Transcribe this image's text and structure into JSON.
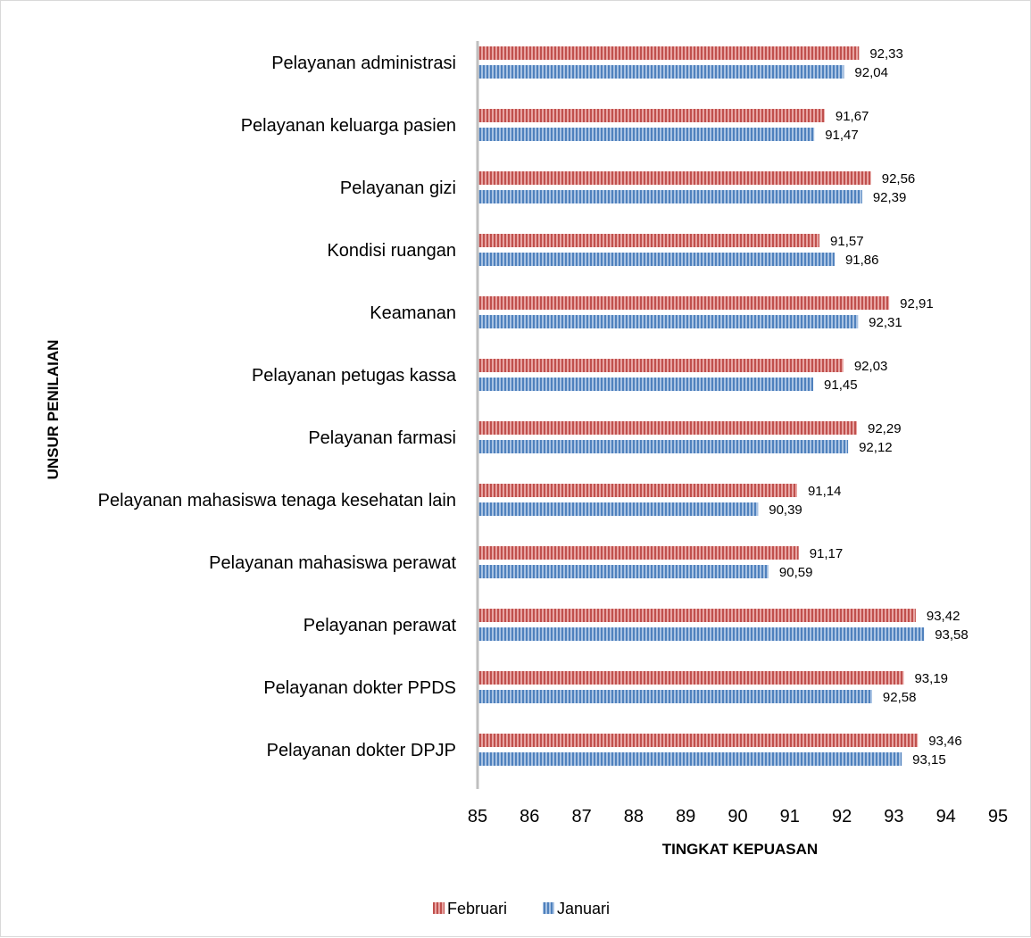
{
  "chart_data": {
    "type": "bar",
    "orientation": "horizontal",
    "categories": [
      "Pelayanan administrasi",
      "Pelayanan keluarga pasien",
      "Pelayanan gizi",
      "Kondisi ruangan",
      "Keamanan",
      "Pelayanan petugas kassa",
      "Pelayanan farmasi",
      "Pelayanan mahasiswa tenaga kesehatan lain",
      "Pelayanan mahasiswa perawat",
      "Pelayanan perawat",
      "Pelayanan dokter PPDS",
      "Pelayanan dokter DPJP"
    ],
    "series": [
      {
        "name": "Februari",
        "color": "#c0504d",
        "values": [
          92.33,
          91.67,
          92.56,
          91.57,
          92.91,
          92.03,
          92.29,
          91.14,
          91.17,
          93.42,
          93.19,
          93.46
        ],
        "labels": [
          "92,33",
          "91,67",
          "92,56",
          "91,57",
          "92,91",
          "92,03",
          "92,29",
          "91,14",
          "91,17",
          "93,42",
          "93,19",
          "93,46"
        ]
      },
      {
        "name": "Januari",
        "color": "#4f81bd",
        "values": [
          92.04,
          91.47,
          92.39,
          91.86,
          92.31,
          91.45,
          92.12,
          90.39,
          90.59,
          93.58,
          92.58,
          93.15
        ],
        "labels": [
          "92,04",
          "91,47",
          "92,39",
          "91,86",
          "92,31",
          "91,45",
          "92,12",
          "90,39",
          "90,59",
          "93,58",
          "92,58",
          "93,15"
        ]
      }
    ],
    "xlim": [
      85,
      95
    ],
    "xticks": [
      "85",
      "86",
      "87",
      "88",
      "89",
      "90",
      "91",
      "92",
      "93",
      "94",
      "95"
    ],
    "xlabel": "TINGKAT KEPUASAN",
    "ylabel": "UNSUR PENILAIAN",
    "legend": {
      "position": "bottom",
      "entries": [
        "Februari",
        "Januari"
      ]
    },
    "grid": false
  }
}
